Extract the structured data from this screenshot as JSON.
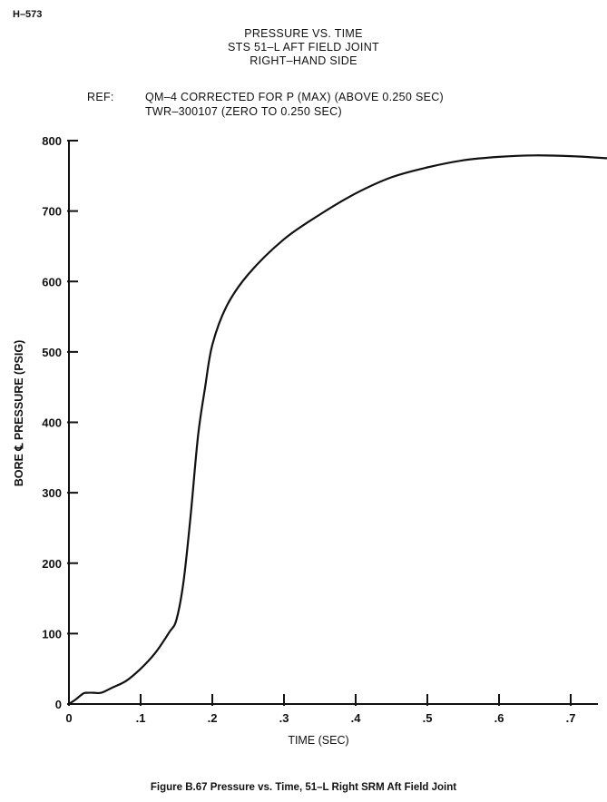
{
  "page_id": "H–573",
  "caption": "Figure B.67 Pressure vs. Time, 51–L Right SRM Aft Field Joint",
  "chart_data": {
    "type": "line",
    "title_lines": [
      "PRESSURE VS. TIME",
      "STS 51–L AFT FIELD JOINT",
      "RIGHT–HAND SIDE"
    ],
    "ref_label": "REF:",
    "ref_lines": [
      "QM–4 CORRECTED FOR P (MAX) (ABOVE 0.250 SEC)",
      "TWR–300107 (ZERO TO 0.250 SEC)"
    ],
    "xlabel": "TIME (SEC)",
    "ylabel": "BORE ℄ PRESSURE (PSIG)",
    "xlim": [
      0,
      0.75
    ],
    "ylim": [
      0,
      800
    ],
    "x_ticks": [
      0,
      0.1,
      0.2,
      0.3,
      0.4,
      0.5,
      0.6,
      0.7
    ],
    "x_tick_labels": [
      "0",
      ".1",
      ".2",
      ".3",
      ".4",
      ".5",
      ".6",
      ".7"
    ],
    "y_ticks": [
      0,
      100,
      200,
      300,
      400,
      500,
      600,
      700,
      800
    ],
    "y_tick_labels": [
      "0",
      "100",
      "200",
      "300",
      "400",
      "500",
      "600",
      "700",
      "800"
    ],
    "grid": false,
    "series": [
      {
        "x": [
          0,
          0.01,
          0.02,
          0.025,
          0.035,
          0.045,
          0.06,
          0.08,
          0.1,
          0.12,
          0.14,
          0.15,
          0.16,
          0.17,
          0.18,
          0.19,
          0.2,
          0.22,
          0.25,
          0.3,
          0.35,
          0.4,
          0.45,
          0.5,
          0.55,
          0.6,
          0.65,
          0.7,
          0.75
        ],
        "y": [
          0,
          7,
          15,
          16,
          16,
          16,
          23,
          33,
          50,
          72,
          102,
          120,
          175,
          270,
          380,
          450,
          510,
          565,
          610,
          660,
          695,
          725,
          748,
          762,
          772,
          777,
          779,
          778,
          775
        ]
      }
    ]
  }
}
